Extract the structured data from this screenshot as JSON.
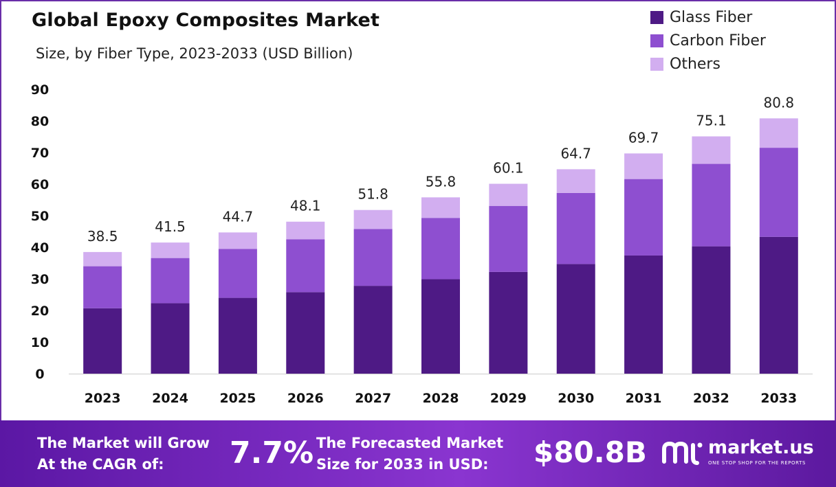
{
  "header": {
    "title": "Global Epoxy Composites Market",
    "subtitle": "Size, by Fiber Type, 2023-2033 (USD Billion)"
  },
  "legend": [
    {
      "label": "Glass Fiber",
      "color": "#4e1a85"
    },
    {
      "label": "Carbon Fiber",
      "color": "#8e4fd0"
    },
    {
      "label": "Others",
      "color": "#d2aef0"
    }
  ],
  "chart_data": {
    "type": "bar",
    "stacked": true,
    "categories": [
      "2023",
      "2024",
      "2025",
      "2026",
      "2027",
      "2028",
      "2029",
      "2030",
      "2031",
      "2032",
      "2033"
    ],
    "series": [
      {
        "name": "Glass Fiber",
        "color": "#4e1a85",
        "values": [
          20.7,
          22.3,
          24.0,
          25.8,
          27.8,
          29.9,
          32.2,
          34.7,
          37.4,
          40.3,
          43.3
        ]
      },
      {
        "name": "Carbon Fiber",
        "color": "#8e4fd0",
        "values": [
          13.3,
          14.3,
          15.5,
          16.7,
          18.0,
          19.4,
          20.9,
          22.5,
          24.2,
          26.1,
          28.2
        ]
      },
      {
        "name": "Others",
        "color": "#d2aef0",
        "values": [
          4.5,
          4.9,
          5.2,
          5.6,
          6.0,
          6.5,
          7.0,
          7.5,
          8.1,
          8.7,
          9.3
        ]
      }
    ],
    "totals": [
      "38.5",
      "41.5",
      "44.7",
      "48.1",
      "51.8",
      "55.8",
      "60.1",
      "64.7",
      "69.7",
      "75.1",
      "80.8"
    ],
    "yticks": [
      "0",
      "10",
      "20",
      "30",
      "40",
      "50",
      "60",
      "70",
      "80",
      "90"
    ],
    "ylim": [
      0,
      90
    ],
    "grid": false,
    "legend_position": "top-right"
  },
  "footer": {
    "cagr_label_line1": "The Market will Grow",
    "cagr_label_line2": "At the CAGR of:",
    "cagr_value": "7.7%",
    "forecast_label_line1": "The Forecasted Market",
    "forecast_label_line2": "Size for 2033 in USD:",
    "forecast_value": "$80.8B",
    "brand_name": "market.us",
    "brand_tagline": "ONE STOP SHOP FOR THE REPORTS",
    "brand_icon": "market-us-logo-icon"
  }
}
